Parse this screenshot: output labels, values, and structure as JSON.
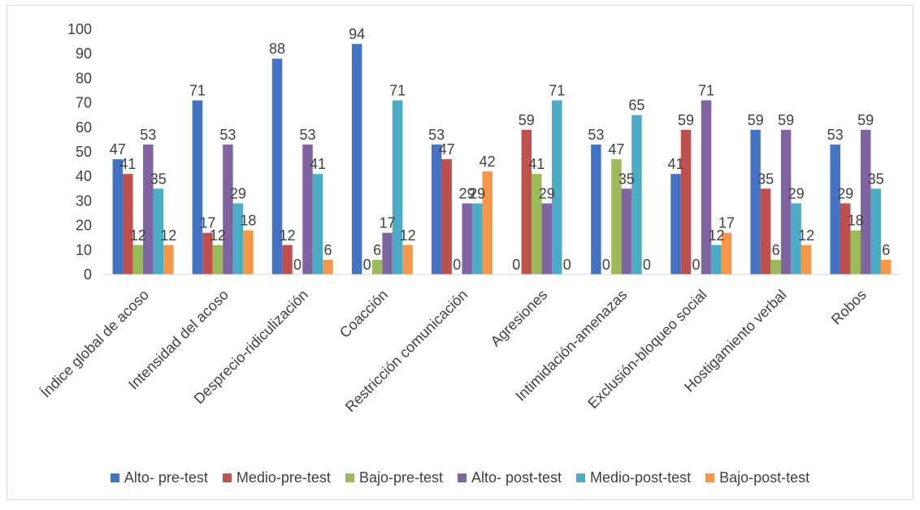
{
  "chart_data": {
    "type": "bar",
    "categories": [
      "Índice global de acoso",
      "Intensidad del acoso",
      "Desprecio-ridiculización",
      "Coacción",
      "Restricción comunicación",
      "Agresiones",
      "Intimidación-amenazas",
      "Exclusión-bloqueo social",
      "Hostigamiento verbal",
      "Robos"
    ],
    "series": [
      {
        "name": "Alto- pre-test",
        "color": "#4472C4",
        "values": [
          47,
          71,
          88,
          94,
          53,
          0,
          53,
          41,
          59,
          53
        ]
      },
      {
        "name": "Medio-pre-test",
        "color": "#C0504D",
        "values": [
          41,
          17,
          12,
          0,
          47,
          59,
          0,
          59,
          35,
          29
        ]
      },
      {
        "name": "Bajo-pre-test",
        "color": "#9BBB59",
        "values": [
          12,
          12,
          0,
          6,
          0,
          41,
          47,
          0,
          6,
          18
        ]
      },
      {
        "name": "Alto- post-test",
        "color": "#8064A2",
        "values": [
          53,
          53,
          53,
          17,
          29,
          29,
          35,
          71,
          59,
          59
        ]
      },
      {
        "name": "Medio-post-test",
        "color": "#4BACC6",
        "values": [
          35,
          29,
          41,
          71,
          29,
          71,
          65,
          12,
          29,
          35
        ]
      },
      {
        "name": "Bajo-post-test",
        "color": "#F79646",
        "values": [
          12,
          18,
          6,
          12,
          42,
          0,
          0,
          17,
          12,
          6
        ]
      }
    ],
    "yticks": [
      "0",
      "10",
      "20",
      "30",
      "40",
      "50",
      "60",
      "70",
      "80",
      "90",
      "100"
    ],
    "ylim": [
      0,
      100
    ],
    "grid": false,
    "legend_position": "bottom"
  }
}
